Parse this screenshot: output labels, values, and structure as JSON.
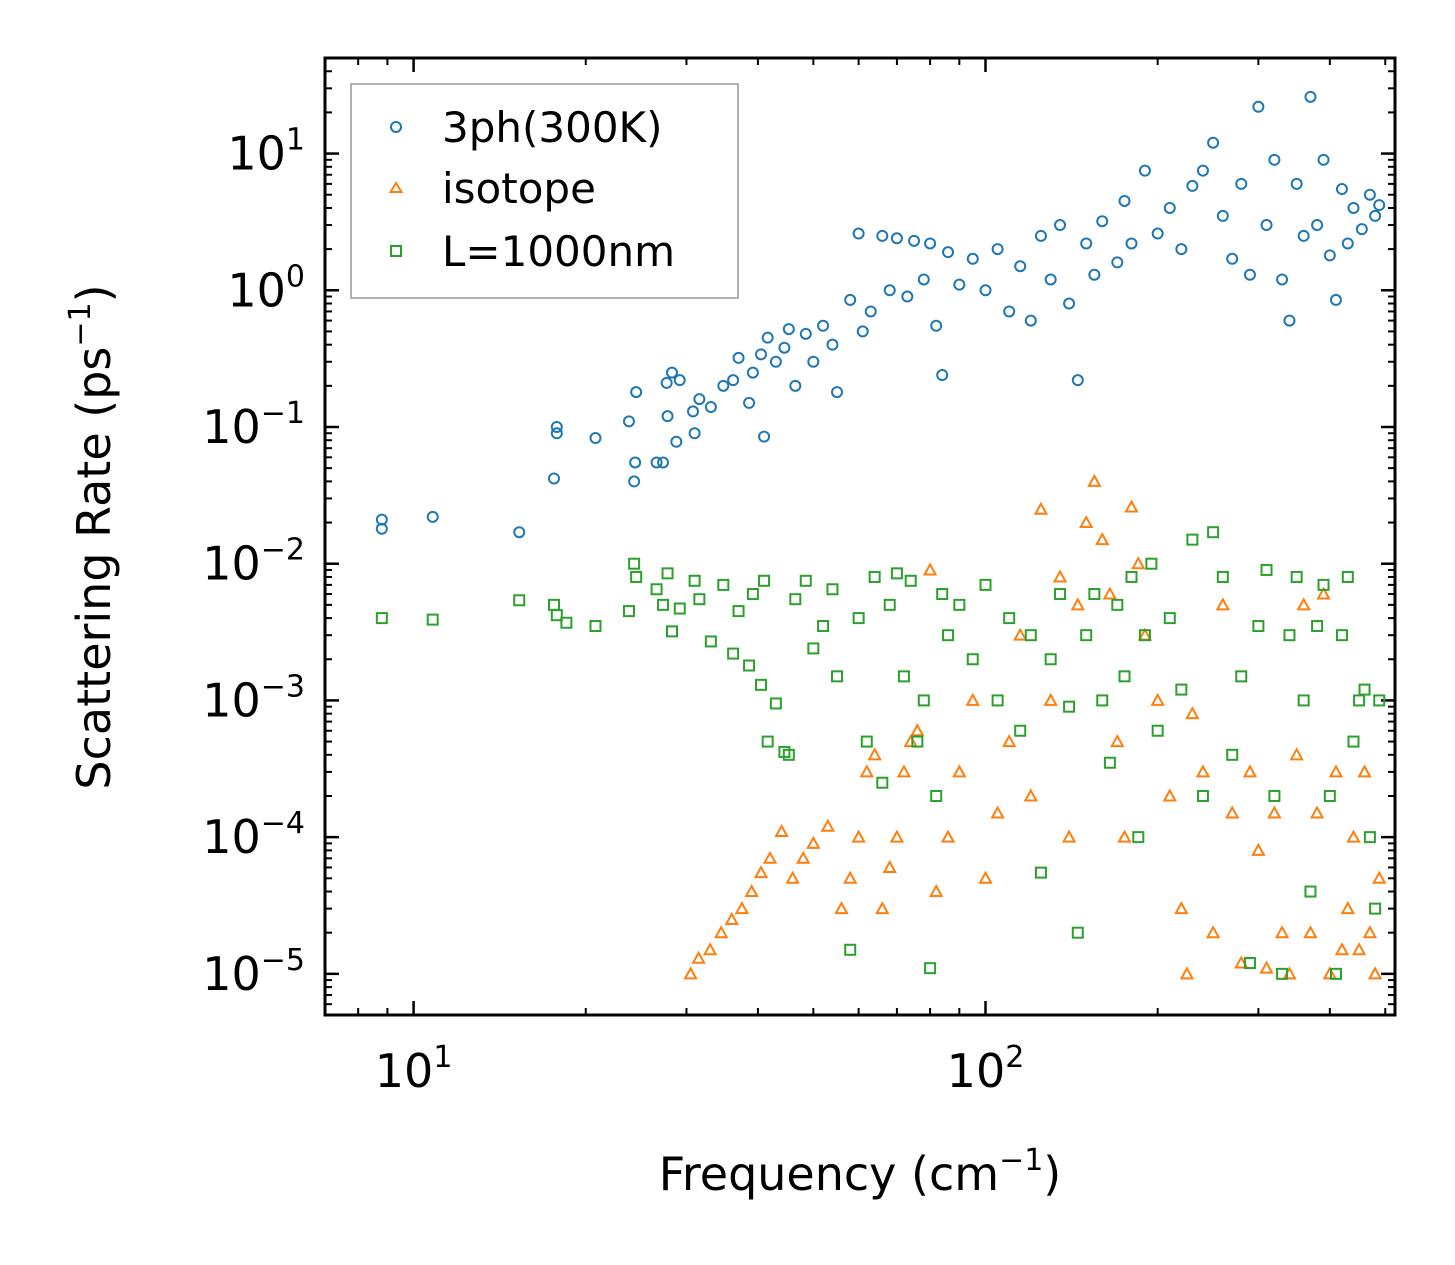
{
  "chart_data": {
    "type": "scatter",
    "xscale": "log",
    "yscale": "log",
    "xlabel": {
      "text": "Frequency (cm",
      "sup": "−1",
      "suffix": ")"
    },
    "ylabel": {
      "text": "Scattering Rate (ps",
      "sup": "−1",
      "suffix": ")"
    },
    "xlim": [
      7,
      520
    ],
    "ylim": [
      5e-06,
      50
    ],
    "x_major_ticks": [
      {
        "value": 10,
        "base": "10",
        "exp": "1"
      },
      {
        "value": 100,
        "base": "10",
        "exp": "2"
      }
    ],
    "y_major_ticks": [
      {
        "value": 10,
        "base": "10",
        "exp": "1"
      },
      {
        "value": 1,
        "base": "10",
        "exp": "0"
      },
      {
        "value": 0.1,
        "base": "10",
        "exp": "−1"
      },
      {
        "value": 0.01,
        "base": "10",
        "exp": "−2"
      },
      {
        "value": 0.001,
        "base": "10",
        "exp": "−3"
      },
      {
        "value": 0.0001,
        "base": "10",
        "exp": "−4"
      },
      {
        "value": 1e-05,
        "base": "10",
        "exp": "−5"
      }
    ],
    "legend": {
      "position": "top-left"
    },
    "series": [
      {
        "name": "3ph(300K)",
        "marker": "circle",
        "color": "#1f77b4",
        "points": [
          [
            8.8,
            0.021
          ],
          [
            8.8,
            0.018
          ],
          [
            10.8,
            0.022
          ],
          [
            15.3,
            0.017
          ],
          [
            17.6,
            0.042
          ],
          [
            17.8,
            0.1
          ],
          [
            17.8,
            0.09
          ],
          [
            20.8,
            0.083
          ],
          [
            23.8,
            0.11
          ],
          [
            24.3,
            0.04
          ],
          [
            24.4,
            0.055
          ],
          [
            24.5,
            0.18
          ],
          [
            26.6,
            0.055
          ],
          [
            27.3,
            0.055
          ],
          [
            27.7,
            0.21
          ],
          [
            27.8,
            0.12
          ],
          [
            28.3,
            0.25
          ],
          [
            28.8,
            0.078
          ],
          [
            29.2,
            0.22
          ],
          [
            30.8,
            0.13
          ],
          [
            31.0,
            0.09
          ],
          [
            31.6,
            0.16
          ],
          [
            33.1,
            0.14
          ],
          [
            34.8,
            0.2
          ],
          [
            36.2,
            0.22
          ],
          [
            37.0,
            0.32
          ],
          [
            38.6,
            0.15
          ],
          [
            39.2,
            0.25
          ],
          [
            40.5,
            0.34
          ],
          [
            41.0,
            0.085
          ],
          [
            41.6,
            0.45
          ],
          [
            43.0,
            0.3
          ],
          [
            44.5,
            0.38
          ],
          [
            45.3,
            0.52
          ],
          [
            46.5,
            0.2
          ],
          [
            48.5,
            0.48
          ],
          [
            50.0,
            0.3
          ],
          [
            52.0,
            0.55
          ],
          [
            54.0,
            0.4
          ],
          [
            55.0,
            0.18
          ],
          [
            58.0,
            0.85
          ],
          [
            60.0,
            2.6
          ],
          [
            61.0,
            0.5
          ],
          [
            63.0,
            0.7
          ],
          [
            66.0,
            2.5
          ],
          [
            68.0,
            1.0
          ],
          [
            70.0,
            2.4
          ],
          [
            73.0,
            0.9
          ],
          [
            75.0,
            2.3
          ],
          [
            78.0,
            1.2
          ],
          [
            80.0,
            2.2
          ],
          [
            82.0,
            0.55
          ],
          [
            84.0,
            0.24
          ],
          [
            86.0,
            1.9
          ],
          [
            90.0,
            1.1
          ],
          [
            95.0,
            1.7
          ],
          [
            100.0,
            1.0
          ],
          [
            105.0,
            2.0
          ],
          [
            110.0,
            0.7
          ],
          [
            115.0,
            1.5
          ],
          [
            120.0,
            0.6
          ],
          [
            125.0,
            2.5
          ],
          [
            130.0,
            1.2
          ],
          [
            135.0,
            3.0
          ],
          [
            140.0,
            0.8
          ],
          [
            145.0,
            0.22
          ],
          [
            150.0,
            2.2
          ],
          [
            155.0,
            1.3
          ],
          [
            160.0,
            3.2
          ],
          [
            170.0,
            1.6
          ],
          [
            175.0,
            4.5
          ],
          [
            180.0,
            2.2
          ],
          [
            190.0,
            7.5
          ],
          [
            200.0,
            2.6
          ],
          [
            210.0,
            4.0
          ],
          [
            220.0,
            2.0
          ],
          [
            230.0,
            5.8
          ],
          [
            240.0,
            7.5
          ],
          [
            250.0,
            12.0
          ],
          [
            260.0,
            3.5
          ],
          [
            270.0,
            1.7
          ],
          [
            280.0,
            6.0
          ],
          [
            290.0,
            1.3
          ],
          [
            300.0,
            22.0
          ],
          [
            310.0,
            3.0
          ],
          [
            320.0,
            9.0
          ],
          [
            330.0,
            1.2
          ],
          [
            340.0,
            0.6
          ],
          [
            350.0,
            6.0
          ],
          [
            360.0,
            2.5
          ],
          [
            370.0,
            26.0
          ],
          [
            380.0,
            3.0
          ],
          [
            390.0,
            9.0
          ],
          [
            400.0,
            1.8
          ],
          [
            410.0,
            0.85
          ],
          [
            420.0,
            5.5
          ],
          [
            430.0,
            2.2
          ],
          [
            440.0,
            4.0
          ],
          [
            455.0,
            2.8
          ],
          [
            470.0,
            5.0
          ],
          [
            480.0,
            3.5
          ],
          [
            488.0,
            4.2
          ]
        ]
      },
      {
        "name": "isotope",
        "marker": "triangle",
        "color": "#ff7f0e",
        "points": [
          [
            30.5,
            1e-05
          ],
          [
            31.5,
            1.3e-05
          ],
          [
            33.0,
            1.5e-05
          ],
          [
            34.5,
            2e-05
          ],
          [
            36.0,
            2.5e-05
          ],
          [
            37.5,
            3e-05
          ],
          [
            39.0,
            4e-05
          ],
          [
            40.5,
            5.5e-05
          ],
          [
            42.0,
            7e-05
          ],
          [
            44.0,
            0.00011
          ],
          [
            46.0,
            5e-05
          ],
          [
            48.0,
            7e-05
          ],
          [
            50.0,
            9e-05
          ],
          [
            53.0,
            0.00012
          ],
          [
            56.0,
            3e-05
          ],
          [
            58.0,
            5e-05
          ],
          [
            60.0,
            0.0001
          ],
          [
            62.0,
            0.0003
          ],
          [
            64.0,
            0.0004
          ],
          [
            66.0,
            3e-05
          ],
          [
            68.0,
            6e-05
          ],
          [
            70.0,
            0.0001
          ],
          [
            72.0,
            0.0003
          ],
          [
            74.0,
            0.0005
          ],
          [
            76.0,
            0.0006
          ],
          [
            80.0,
            0.009
          ],
          [
            82.0,
            4e-05
          ],
          [
            86.0,
            0.0001
          ],
          [
            90.0,
            0.0003
          ],
          [
            95.0,
            0.001
          ],
          [
            100.0,
            5e-05
          ],
          [
            105.0,
            0.00015
          ],
          [
            110.0,
            0.0005
          ],
          [
            115.0,
            0.003
          ],
          [
            120.0,
            0.0002
          ],
          [
            125.0,
            0.025
          ],
          [
            130.0,
            0.001
          ],
          [
            135.0,
            0.008
          ],
          [
            140.0,
            0.0001
          ],
          [
            145.0,
            0.005
          ],
          [
            150.0,
            0.02
          ],
          [
            155.0,
            0.04
          ],
          [
            160.0,
            0.015
          ],
          [
            165.0,
            0.006
          ],
          [
            170.0,
            0.0005
          ],
          [
            175.0,
            0.0001
          ],
          [
            180.0,
            0.026
          ],
          [
            185.0,
            0.01
          ],
          [
            190.0,
            0.003
          ],
          [
            200.0,
            0.001
          ],
          [
            210.0,
            0.0002
          ],
          [
            220.0,
            3e-05
          ],
          [
            225.0,
            1e-05
          ],
          [
            230.0,
            0.0008
          ],
          [
            240.0,
            0.0003
          ],
          [
            250.0,
            2e-05
          ],
          [
            260.0,
            0.005
          ],
          [
            270.0,
            0.00015
          ],
          [
            280.0,
            1.2e-05
          ],
          [
            290.0,
            0.0003
          ],
          [
            300.0,
            8e-05
          ],
          [
            310.0,
            1.1e-05
          ],
          [
            320.0,
            0.00015
          ],
          [
            330.0,
            2e-05
          ],
          [
            340.0,
            1e-05
          ],
          [
            350.0,
            0.0004
          ],
          [
            360.0,
            0.005
          ],
          [
            370.0,
            2e-05
          ],
          [
            380.0,
            0.00015
          ],
          [
            390.0,
            0.006
          ],
          [
            400.0,
            1e-05
          ],
          [
            410.0,
            0.0003
          ],
          [
            420.0,
            1.5e-05
          ],
          [
            430.0,
            3e-05
          ],
          [
            440.0,
            0.0001
          ],
          [
            450.0,
            1.5e-05
          ],
          [
            460.0,
            0.0003
          ],
          [
            470.0,
            2e-05
          ],
          [
            480.0,
            1e-05
          ],
          [
            488.0,
            5e-05
          ]
        ]
      },
      {
        "name": "L=1000nm",
        "marker": "square",
        "color": "#2ca02c",
        "points": [
          [
            8.8,
            0.004
          ],
          [
            10.8,
            0.0039
          ],
          [
            15.3,
            0.0054
          ],
          [
            17.6,
            0.005
          ],
          [
            17.8,
            0.0042
          ],
          [
            18.5,
            0.0037
          ],
          [
            20.8,
            0.0035
          ],
          [
            23.8,
            0.0045
          ],
          [
            24.3,
            0.01
          ],
          [
            24.5,
            0.008
          ],
          [
            26.6,
            0.0065
          ],
          [
            27.3,
            0.005
          ],
          [
            27.8,
            0.0085
          ],
          [
            28.3,
            0.0032
          ],
          [
            29.2,
            0.0047
          ],
          [
            31.0,
            0.0075
          ],
          [
            31.6,
            0.0055
          ],
          [
            33.1,
            0.0027
          ],
          [
            34.8,
            0.007
          ],
          [
            36.2,
            0.0022
          ],
          [
            37.0,
            0.0045
          ],
          [
            38.6,
            0.0018
          ],
          [
            39.2,
            0.006
          ],
          [
            40.5,
            0.0013
          ],
          [
            41.0,
            0.0075
          ],
          [
            41.6,
            0.0005
          ],
          [
            43.0,
            0.00095
          ],
          [
            44.5,
            0.00042
          ],
          [
            45.3,
            0.0004
          ],
          [
            46.5,
            0.0055
          ],
          [
            48.5,
            0.0075
          ],
          [
            50.0,
            0.0024
          ],
          [
            52.0,
            0.0035
          ],
          [
            54.0,
            0.0065
          ],
          [
            55.0,
            0.0015
          ],
          [
            58.0,
            1.5e-05
          ],
          [
            60.0,
            0.004
          ],
          [
            62.0,
            0.0005
          ],
          [
            64.0,
            0.008
          ],
          [
            66.0,
            0.00025
          ],
          [
            68.0,
            0.005
          ],
          [
            70.0,
            0.0085
          ],
          [
            72.0,
            0.0015
          ],
          [
            74.0,
            0.0075
          ],
          [
            76.0,
            0.0005
          ],
          [
            78.0,
            0.001
          ],
          [
            80.0,
            1.1e-05
          ],
          [
            82.0,
            0.0002
          ],
          [
            84.0,
            0.006
          ],
          [
            86.0,
            0.003
          ],
          [
            90.0,
            0.005
          ],
          [
            95.0,
            0.002
          ],
          [
            100.0,
            0.007
          ],
          [
            105.0,
            0.001
          ],
          [
            110.0,
            0.004
          ],
          [
            115.0,
            0.0006
          ],
          [
            120.0,
            0.003
          ],
          [
            125.0,
            5.5e-05
          ],
          [
            130.0,
            0.002
          ],
          [
            135.0,
            0.006
          ],
          [
            140.0,
            0.0009
          ],
          [
            145.0,
            2e-05
          ],
          [
            150.0,
            0.003
          ],
          [
            155.0,
            0.006
          ],
          [
            160.0,
            0.001
          ],
          [
            165.0,
            0.00035
          ],
          [
            170.0,
            0.005
          ],
          [
            175.0,
            0.0015
          ],
          [
            180.0,
            0.008
          ],
          [
            185.0,
            0.0001
          ],
          [
            190.0,
            0.003
          ],
          [
            195.0,
            0.01
          ],
          [
            200.0,
            0.0006
          ],
          [
            210.0,
            0.004
          ],
          [
            220.0,
            0.0012
          ],
          [
            230.0,
            0.015
          ],
          [
            240.0,
            0.0002
          ],
          [
            250.0,
            0.017
          ],
          [
            260.0,
            0.008
          ],
          [
            270.0,
            0.0004
          ],
          [
            280.0,
            0.0015
          ],
          [
            290.0,
            1.2e-05
          ],
          [
            300.0,
            0.0035
          ],
          [
            310.0,
            0.009
          ],
          [
            320.0,
            0.0002
          ],
          [
            330.0,
            1e-05
          ],
          [
            340.0,
            0.003
          ],
          [
            350.0,
            0.008
          ],
          [
            360.0,
            0.001
          ],
          [
            370.0,
            4e-05
          ],
          [
            380.0,
            0.0035
          ],
          [
            390.0,
            0.007
          ],
          [
            400.0,
            0.0002
          ],
          [
            410.0,
            1e-05
          ],
          [
            420.0,
            0.003
          ],
          [
            430.0,
            0.008
          ],
          [
            440.0,
            0.0005
          ],
          [
            450.0,
            0.001
          ],
          [
            460.0,
            0.0012
          ],
          [
            470.0,
            0.0001
          ],
          [
            480.0,
            3e-05
          ],
          [
            488.0,
            0.001
          ]
        ]
      }
    ]
  }
}
